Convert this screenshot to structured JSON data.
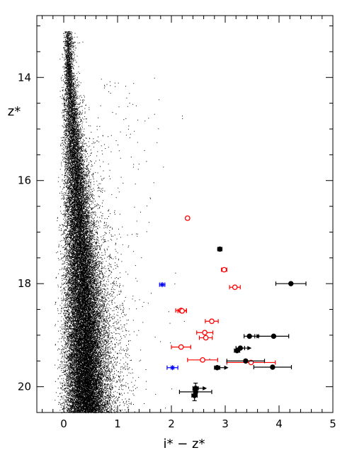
{
  "chart_data": {
    "type": "scatter",
    "title": "",
    "xlabel": "i* − z*",
    "ylabel": "z*",
    "xlim": [
      -0.5,
      5.0
    ],
    "ylim": [
      20.5,
      12.8
    ],
    "y_inverted": true,
    "grid": false,
    "x_ticks": [
      0,
      1,
      2,
      3,
      4,
      5
    ],
    "x_tick_labels": [
      "0",
      "1",
      "2",
      "3",
      "4",
      "5"
    ],
    "y_ticks": [
      14,
      16,
      18,
      20
    ],
    "y_tick_labels": [
      "14",
      "16",
      "18",
      "20"
    ],
    "background_population": {
      "color": "#000000",
      "description": "dense field-star cloud",
      "ridge": [
        {
          "z": 13.1,
          "x_center": 0.08,
          "x_spread": 0.07,
          "density": 0.35
        },
        {
          "z": 13.8,
          "x_center": 0.08,
          "x_spread": 0.07,
          "density": 1.0
        },
        {
          "z": 14.5,
          "x_center": 0.12,
          "x_spread": 0.12,
          "density": 1.5
        },
        {
          "z": 15.5,
          "x_center": 0.18,
          "x_spread": 0.16,
          "density": 2.5
        },
        {
          "z": 16.5,
          "x_center": 0.24,
          "x_spread": 0.21,
          "density": 3.6
        },
        {
          "z": 17.5,
          "x_center": 0.3,
          "x_spread": 0.26,
          "density": 5.0
        },
        {
          "z": 18.5,
          "x_center": 0.35,
          "x_spread": 0.3,
          "density": 6.5
        },
        {
          "z": 19.5,
          "x_center": 0.38,
          "x_spread": 0.32,
          "density": 8.0
        },
        {
          "z": 20.5,
          "x_center": 0.4,
          "x_spread": 0.33,
          "density": 9.0
        }
      ]
    },
    "series": [
      {
        "color": "#ff0000",
        "marker": "open-circle",
        "points": [
          {
            "x": 2.3,
            "y": 16.73,
            "xerr": 0.03
          },
          {
            "x": 2.98,
            "y": 17.73,
            "xerr": 0.05
          },
          {
            "x": 3.18,
            "y": 18.07,
            "xerr": 0.1
          },
          {
            "x": 2.18,
            "y": 18.52,
            "xerr": 0.1
          },
          {
            "x": 2.2,
            "y": 18.53,
            "xerr": 0.08
          },
          {
            "x": 2.75,
            "y": 18.73,
            "xerr": 0.12
          },
          {
            "x": 2.62,
            "y": 18.95,
            "xerr": 0.15
          },
          {
            "x": 2.64,
            "y": 19.05,
            "xerr": 0.12
          },
          {
            "x": 2.18,
            "y": 19.23,
            "xerr": 0.18
          },
          {
            "x": 2.58,
            "y": 19.48,
            "xerr": 0.28
          },
          {
            "x": 3.48,
            "y": 19.53,
            "xerr": 0.45
          }
        ]
      },
      {
        "color": "#0000ff",
        "marker": "asterisk",
        "points": [
          {
            "x": 1.83,
            "y": 18.02,
            "xerr": 0.05
          },
          {
            "x": 2.02,
            "y": 19.63,
            "xerr": 0.1
          }
        ]
      },
      {
        "color": "#000000",
        "marker": "filled-circle",
        "points": [
          {
            "x": 2.9,
            "y": 17.33,
            "xerr": 0.04
          },
          {
            "x": 4.22,
            "y": 18.0,
            "xerr": 0.28
          },
          {
            "x": 3.45,
            "y": 19.02,
            "xerr": 0.1,
            "lower_limit": true
          },
          {
            "x": 3.9,
            "y": 19.02,
            "xerr": 0.28
          },
          {
            "x": 3.28,
            "y": 19.25,
            "xerr": 0.08,
            "lower_limit": true
          },
          {
            "x": 3.22,
            "y": 19.3,
            "xerr": 0.05
          },
          {
            "x": 3.38,
            "y": 19.5,
            "xerr": 0.35
          },
          {
            "x": 3.88,
            "y": 19.62,
            "xerr": 0.35
          },
          {
            "x": 2.85,
            "y": 19.63,
            "xerr": 0.05,
            "lower_limit": true
          },
          {
            "x": 2.45,
            "y": 20.03,
            "xerr": 0.05,
            "yerr": 0.1,
            "lower_limit": true
          },
          {
            "x": 2.45,
            "y": 20.1,
            "xerr": 0.3
          },
          {
            "x": 2.43,
            "y": 20.17,
            "xerr": 0.05,
            "yerr": 0.1
          }
        ]
      }
    ]
  }
}
